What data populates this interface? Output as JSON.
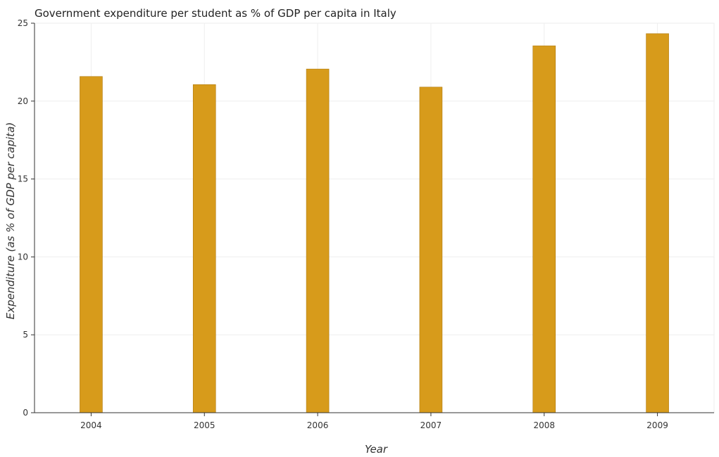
{
  "chart_data": {
    "type": "bar",
    "title": "Government expenditure per student as % of GDP per capita in Italy",
    "xlabel": "Year",
    "ylabel": "Expenditure (as % of GDP per capita)",
    "categories": [
      "2004",
      "2005",
      "2006",
      "2007",
      "2008",
      "2009"
    ],
    "values": [
      21.58,
      21.06,
      22.06,
      20.9,
      23.55,
      24.33
    ],
    "ylim": [
      0,
      25
    ],
    "yticks": [
      0,
      5,
      10,
      15,
      20,
      25
    ],
    "grid": true,
    "bar_color": "#d79b1b"
  }
}
